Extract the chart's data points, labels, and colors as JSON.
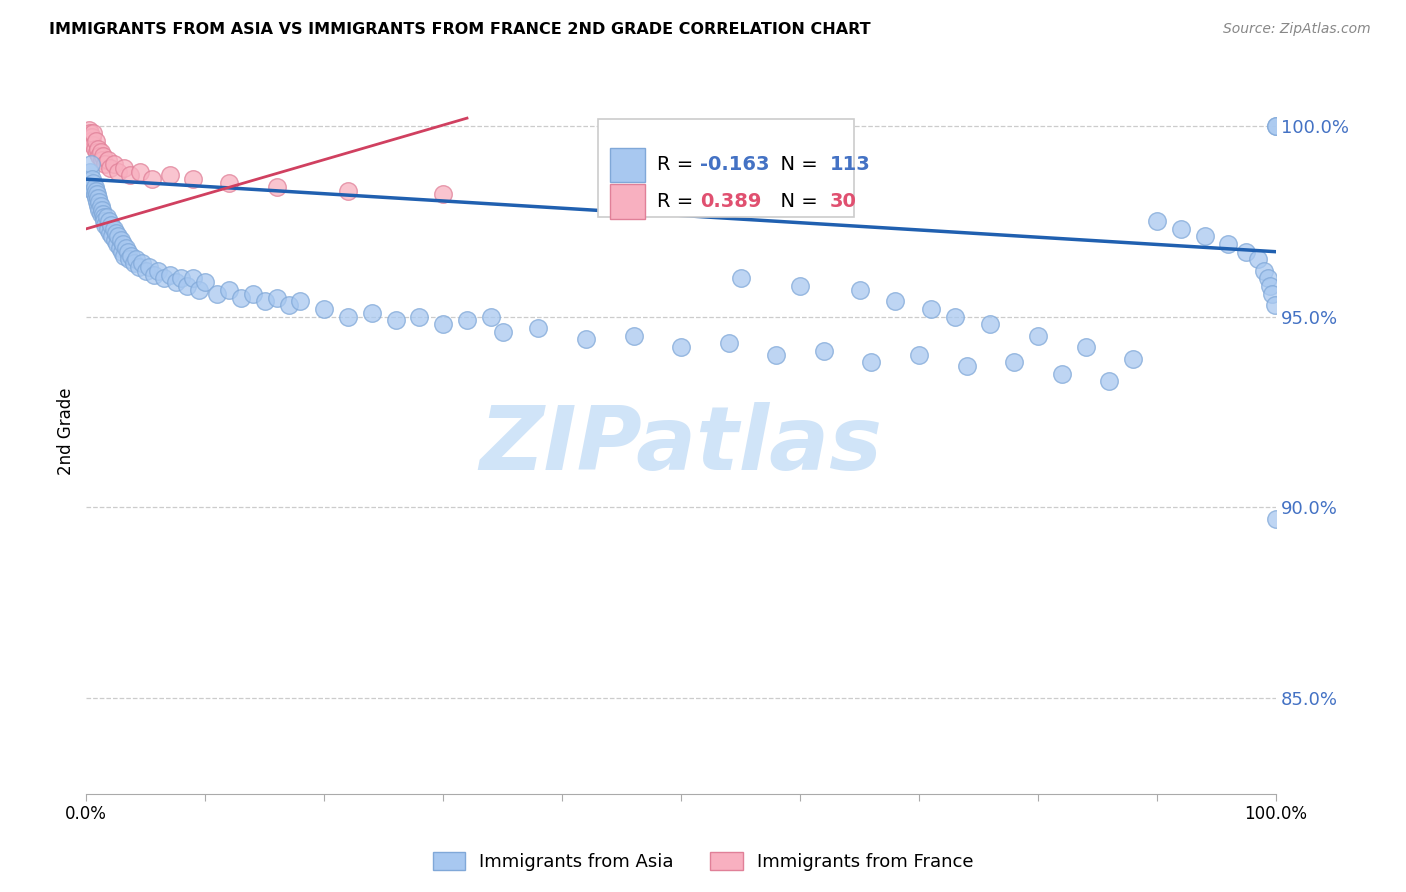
{
  "title": "IMMIGRANTS FROM ASIA VS IMMIGRANTS FROM FRANCE 2ND GRADE CORRELATION CHART",
  "source": "Source: ZipAtlas.com",
  "ylabel": "2nd Grade",
  "xlim": [
    0.0,
    1.0
  ],
  "ylim": [
    0.825,
    1.015
  ],
  "yticks": [
    0.85,
    0.9,
    0.95,
    1.0
  ],
  "ytick_labels": [
    "85.0%",
    "90.0%",
    "95.0%",
    "100.0%"
  ],
  "legend_r_blue": "-0.163",
  "legend_n_blue": "113",
  "legend_r_pink": "0.389",
  "legend_n_pink": "30",
  "blue_scatter_color": "#a8c8f0",
  "blue_scatter_edge": "#80a8d8",
  "pink_scatter_color": "#f8b0c0",
  "pink_scatter_edge": "#e08098",
  "blue_line_color": "#2060b0",
  "pink_line_color": "#d04060",
  "legend_r_blue_color": "#4472c4",
  "legend_n_blue_color": "#4472c4",
  "legend_r_pink_color": "#e05070",
  "legend_n_pink_color": "#e05070",
  "right_tick_color": "#4472c4",
  "watermark_color": "#d0e4f8",
  "blue_line_x": [
    0.0,
    1.0
  ],
  "blue_line_y": [
    0.986,
    0.967
  ],
  "pink_line_x": [
    0.0,
    0.32
  ],
  "pink_line_y": [
    0.973,
    1.002
  ],
  "blue_x": [
    0.003,
    0.004,
    0.005,
    0.005,
    0.006,
    0.006,
    0.007,
    0.007,
    0.008,
    0.008,
    0.009,
    0.009,
    0.01,
    0.01,
    0.011,
    0.011,
    0.012,
    0.012,
    0.013,
    0.014,
    0.015,
    0.015,
    0.016,
    0.017,
    0.018,
    0.019,
    0.02,
    0.021,
    0.022,
    0.023,
    0.024,
    0.025,
    0.026,
    0.027,
    0.028,
    0.029,
    0.03,
    0.031,
    0.032,
    0.033,
    0.035,
    0.036,
    0.038,
    0.04,
    0.042,
    0.044,
    0.047,
    0.05,
    0.053,
    0.057,
    0.06,
    0.065,
    0.07,
    0.075,
    0.08,
    0.085,
    0.09,
    0.095,
    0.1,
    0.11,
    0.12,
    0.13,
    0.14,
    0.15,
    0.16,
    0.17,
    0.18,
    0.2,
    0.22,
    0.24,
    0.26,
    0.28,
    0.3,
    0.32,
    0.35,
    0.38,
    0.42,
    0.46,
    0.5,
    0.54,
    0.58,
    0.62,
    0.66,
    0.7,
    0.74,
    0.78,
    0.82,
    0.86,
    0.9,
    0.92,
    0.94,
    0.96,
    0.975,
    0.985,
    0.99,
    0.993,
    0.995,
    0.997,
    0.999,
    1.0,
    1.0,
    1.0,
    0.55,
    0.6,
    0.65,
    0.68,
    0.71,
    0.73,
    0.76,
    0.8,
    0.84,
    0.88,
    0.34
  ],
  "blue_y": [
    0.988,
    0.99,
    0.986,
    0.984,
    0.985,
    0.983,
    0.984,
    0.982,
    0.983,
    0.981,
    0.982,
    0.98,
    0.981,
    0.979,
    0.98,
    0.978,
    0.979,
    0.977,
    0.978,
    0.977,
    0.976,
    0.975,
    0.974,
    0.976,
    0.973,
    0.975,
    0.972,
    0.974,
    0.971,
    0.973,
    0.97,
    0.972,
    0.969,
    0.971,
    0.968,
    0.97,
    0.967,
    0.969,
    0.966,
    0.968,
    0.967,
    0.965,
    0.966,
    0.964,
    0.965,
    0.963,
    0.964,
    0.962,
    0.963,
    0.961,
    0.962,
    0.96,
    0.961,
    0.959,
    0.96,
    0.958,
    0.96,
    0.957,
    0.959,
    0.956,
    0.957,
    0.955,
    0.956,
    0.954,
    0.955,
    0.953,
    0.954,
    0.952,
    0.95,
    0.951,
    0.949,
    0.95,
    0.948,
    0.949,
    0.946,
    0.947,
    0.944,
    0.945,
    0.942,
    0.943,
    0.94,
    0.941,
    0.938,
    0.94,
    0.937,
    0.938,
    0.935,
    0.933,
    0.975,
    0.973,
    0.971,
    0.969,
    0.967,
    0.965,
    0.962,
    0.96,
    0.958,
    0.956,
    0.953,
    1.0,
    1.0,
    0.897,
    0.96,
    0.958,
    0.957,
    0.954,
    0.952,
    0.95,
    0.948,
    0.945,
    0.942,
    0.939,
    0.95
  ],
  "pink_x": [
    0.002,
    0.003,
    0.003,
    0.004,
    0.005,
    0.006,
    0.006,
    0.007,
    0.008,
    0.009,
    0.01,
    0.011,
    0.012,
    0.013,
    0.014,
    0.016,
    0.018,
    0.02,
    0.023,
    0.027,
    0.032,
    0.037,
    0.045,
    0.055,
    0.07,
    0.09,
    0.12,
    0.16,
    0.22,
    0.3
  ],
  "pink_y": [
    0.999,
    0.997,
    0.998,
    0.996,
    0.997,
    0.995,
    0.998,
    0.994,
    0.996,
    0.993,
    0.994,
    0.992,
    0.993,
    0.991,
    0.992,
    0.99,
    0.991,
    0.989,
    0.99,
    0.988,
    0.989,
    0.987,
    0.988,
    0.986,
    0.987,
    0.986,
    0.985,
    0.984,
    0.983,
    0.982
  ]
}
